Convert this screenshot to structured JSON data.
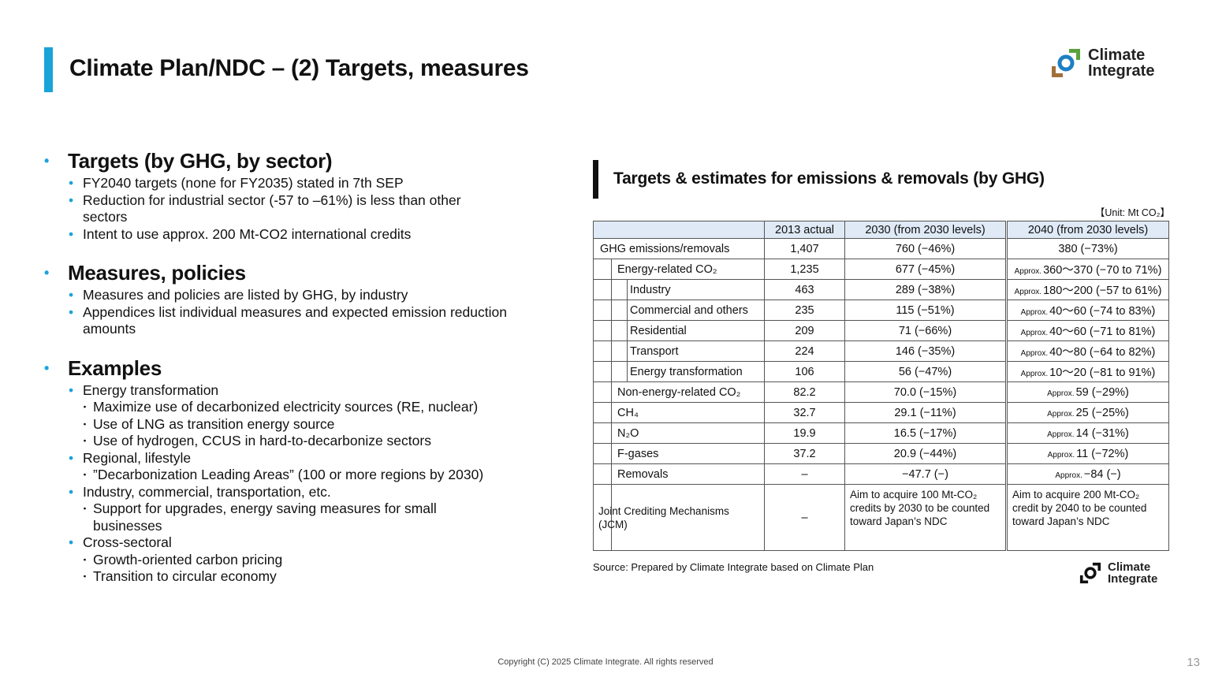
{
  "header": {
    "title": "Climate Plan/NDC – (2) Targets, measures"
  },
  "logo": {
    "line1": "Climate",
    "line2": "Integrate"
  },
  "left": {
    "sections": [
      {
        "heading": "Targets (by GHG, by sector)",
        "items": [
          {
            "text": "FY2040 targets (none for FY2035) stated in 7th SEP"
          },
          {
            "text": "Reduction for industrial sector (-57 to –61%) is less than other sectors"
          },
          {
            "text": "Intent to use approx. 200 Mt-CO2 international credits"
          }
        ]
      },
      {
        "heading": "Measures, policies",
        "items": [
          {
            "text": "Measures and policies are listed by GHG, by industry"
          },
          {
            "text": "Appendices list individual measures and expected emission reduction amounts"
          }
        ]
      },
      {
        "heading": "Examples",
        "items": [
          {
            "text": "Energy transformation",
            "subitems": [
              "Maximize use of decarbonized electricity sources (RE, nuclear)",
              "Use of LNG as transition energy source",
              "Use of hydrogen, CCUS in hard-to-decarbonize sectors"
            ]
          },
          {
            "text": "Regional, lifestyle",
            "subitems": [
              "”Decarbonization Leading Areas” (100 or more regions by 2030)"
            ]
          },
          {
            "text": "Industry, commercial, transportation, etc.",
            "subitems": [
              "Support for upgrades, energy saving measures for small businesses"
            ]
          },
          {
            "text": "Cross-sectoral",
            "subitems": [
              "Growth-oriented carbon pricing",
              "Transition to circular economy"
            ]
          }
        ]
      }
    ]
  },
  "table": {
    "title": "Targets & estimates for emissions & removals (by GHG)",
    "unit": "【Unit: Mt CO₂】",
    "columns": [
      "2013 actual",
      "2030 (from 2030 levels)",
      "2040 (from 2030 levels)"
    ],
    "rows": [
      {
        "label": "GHG emissions/removals",
        "cells": [
          "1,407",
          "760 (−46%)",
          "380 (−73%)"
        ]
      },
      {
        "label": "Energy-related CO₂",
        "cells": [
          "1,235",
          "677 (−45%)",
          {
            "prefix": "Approx.",
            "text": "360～370 (−70 to 71%)"
          }
        ]
      },
      {
        "label": "Industry",
        "cells": [
          "463",
          "289 (−38%)",
          {
            "prefix": "Approx.",
            "text": "180～200 (−57 to 61%)"
          }
        ]
      },
      {
        "label": "Commercial and others",
        "cells": [
          "235",
          "115 (−51%)",
          {
            "prefix": "Approx.",
            "text": "40～60 (−74 to 83%)"
          }
        ]
      },
      {
        "label": "Residential",
        "cells": [
          "209",
          "71 (−66%)",
          {
            "prefix": "Approx.",
            "text": "40～60 (−71 to 81%)"
          }
        ]
      },
      {
        "label": "Transport",
        "cells": [
          "224",
          "146 (−35%)",
          {
            "prefix": "Approx.",
            "text": "40～80 (−64 to 82%)"
          }
        ]
      },
      {
        "label": "Energy transformation",
        "cells": [
          "106",
          "56 (−47%)",
          {
            "prefix": "Approx.",
            "text": "10～20 (−81 to 91%)"
          }
        ]
      },
      {
        "label": "Non-energy-related CO₂",
        "cells": [
          "82.2",
          "70.0 (−15%)",
          {
            "prefix": "Approx.",
            "text": "59 (−29%)"
          }
        ]
      },
      {
        "label": "CH₄",
        "cells": [
          "32.7",
          "29.1 (−11%)",
          {
            "prefix": "Approx.",
            "text": "25 (−25%)"
          }
        ]
      },
      {
        "label": "N₂O",
        "cells": [
          "19.9",
          "16.5 (−17%)",
          {
            "prefix": "Approx.",
            "text": "14 (−31%)"
          }
        ]
      },
      {
        "label": "F-gases",
        "cells": [
          "37.2",
          "20.9 (−44%)",
          {
            "prefix": "Approx.",
            "text": "11 (−72%)"
          }
        ]
      },
      {
        "label": "Removals",
        "cells": [
          "–",
          "−47.7 (−)",
          {
            "prefix": "Approx.",
            "text": "−84 (−)"
          }
        ]
      },
      {
        "label": "Joint Crediting Mechanisms (JCM)",
        "cells": [
          "–",
          "Aim to acquire 100 Mt-CO₂ credits by 2030 to be counted toward Japan’s NDC",
          "Aim to acquire 200 Mt-CO₂ credit by 2040 to be counted toward Japan’s NDC"
        ]
      }
    ],
    "source": "Source: Prepared by Climate Integrate based on Climate Plan"
  },
  "footer": {
    "copyright": "Copyright (C) 2025 Climate Integrate. All rights reserved",
    "page": "13"
  }
}
